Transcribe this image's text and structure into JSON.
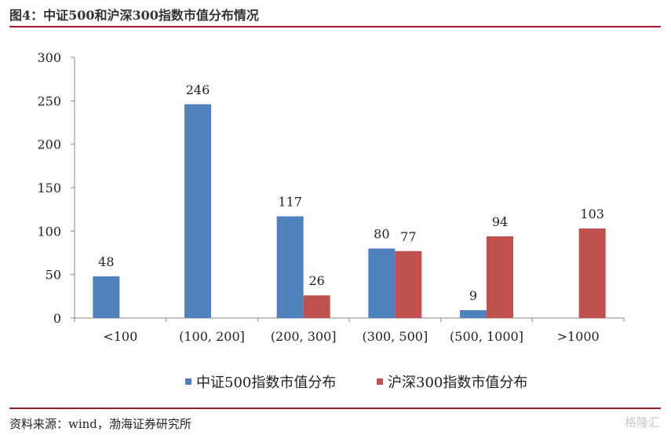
{
  "title": "图4：中证500和沪深300指数市值分布情况",
  "source": "资料来源：wind，渤海证券研究所",
  "watermark": "格隆汇",
  "chart_data": {
    "type": "bar",
    "title": "",
    "xlabel": "",
    "ylabel": "",
    "categories": [
      "<100",
      "(100, 200]",
      "(200, 300]",
      "(300, 500]",
      "(500, 1000]",
      ">1000"
    ],
    "series": [
      {
        "name": "中证500指数市值分布",
        "color": "#4f81bd",
        "values": [
          48,
          246,
          117,
          80,
          9,
          null
        ]
      },
      {
        "name": "沪深300指数市值分布",
        "color": "#c0504d",
        "values": [
          null,
          null,
          26,
          77,
          94,
          103
        ]
      }
    ],
    "ylim": [
      0,
      300
    ],
    "yticks": [
      0,
      50,
      100,
      150,
      200,
      250,
      300
    ],
    "grid": false,
    "legend_position": "bottom",
    "data_labels": true
  }
}
